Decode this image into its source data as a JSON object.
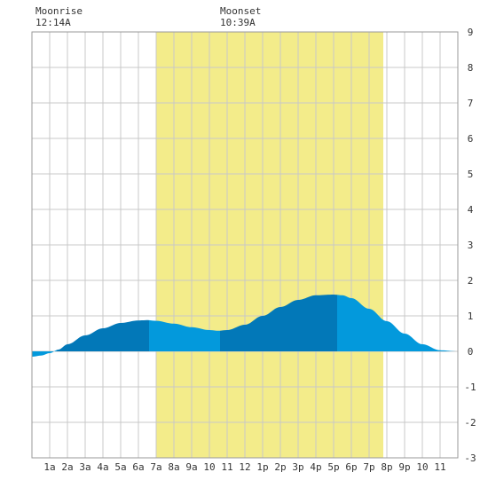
{
  "header": {
    "moonrise_label": "Moonrise",
    "moonrise_time": "12:14A",
    "moonset_label": "Moonset",
    "moonset_time": "10:39A"
  },
  "colors": {
    "daylight": "#f3ec8a",
    "tide_light": "#0399dc",
    "tide_dark": "#0278b8",
    "grid": "#c8c8c8",
    "border": "#999999",
    "text": "#333333"
  },
  "chart_data": {
    "type": "area",
    "title": "",
    "xlabel": "",
    "ylabel": "",
    "xlim": [
      0,
      24
    ],
    "ylim": [
      -3,
      9
    ],
    "y_ticks": [
      9,
      8,
      7,
      6,
      5,
      4,
      3,
      2,
      1,
      0,
      -1,
      -2,
      -3
    ],
    "x_tick_labels": [
      "1a",
      "2a",
      "3a",
      "4a",
      "5a",
      "6a",
      "7a",
      "8a",
      "9a",
      "10",
      "11",
      "12",
      "1p",
      "2p",
      "3p",
      "4p",
      "5p",
      "6p",
      "7p",
      "8p",
      "9p",
      "10",
      "11"
    ],
    "x_tick_hours": [
      1,
      2,
      3,
      4,
      5,
      6,
      7,
      8,
      9,
      10,
      11,
      12,
      13,
      14,
      15,
      16,
      17,
      18,
      19,
      20,
      21,
      22,
      23
    ],
    "grid": true,
    "daylight_hours": [
      7,
      19.8
    ],
    "moonrise_hour": 0.23,
    "moonset_hour": 10.65,
    "series": [
      {
        "hours": [
          0,
          0.5,
          1,
          1.5,
          2,
          3,
          4,
          5,
          6,
          6.5,
          7,
          8,
          9,
          10,
          10.5,
          11,
          12,
          13,
          14,
          15,
          16,
          17,
          17.5,
          18,
          19,
          20,
          21,
          22,
          23,
          24
        ],
        "feet": [
          -0.15,
          -0.12,
          -0.05,
          0.05,
          0.2,
          0.45,
          0.65,
          0.8,
          0.87,
          0.88,
          0.86,
          0.78,
          0.68,
          0.6,
          0.58,
          0.6,
          0.75,
          1.0,
          1.25,
          1.45,
          1.58,
          1.6,
          1.58,
          1.5,
          1.2,
          0.85,
          0.5,
          0.2,
          0.03,
          0.0
        ]
      }
    ],
    "shade_bands": [
      {
        "from": 0,
        "to": 1.4,
        "shade": "light"
      },
      {
        "from": 1.4,
        "to": 6.6,
        "shade": "dark"
      },
      {
        "from": 6.6,
        "to": 10.6,
        "shade": "light"
      },
      {
        "from": 10.6,
        "to": 17.2,
        "shade": "dark"
      },
      {
        "from": 17.2,
        "to": 24,
        "shade": "light"
      }
    ]
  }
}
